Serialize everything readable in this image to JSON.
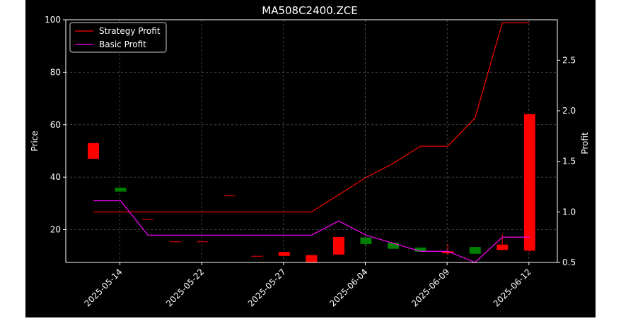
{
  "chart_data": {
    "type": "candlestick",
    "title": "MA508C2400.ZCE",
    "ylabel_left": "Price",
    "ylabel_right": "Profit",
    "ylim_left": [
      7.5,
      100
    ],
    "ylim_right": [
      0.5,
      2.9
    ],
    "yticks_left": [
      "20",
      "40",
      "60",
      "80",
      "100"
    ],
    "yticks_right": [
      "0.5",
      "1.0",
      "1.5",
      "2.0",
      "2.5"
    ],
    "xticks": [
      "2025-05-14",
      "2025-05-22",
      "2025-05-27",
      "2025-06-04",
      "2025-06-09",
      "2025-06-12"
    ],
    "grid": true,
    "legend_position": "upper-left",
    "legend": [
      "Strategy Profit",
      "Basic Profit"
    ],
    "colors": {
      "up": "#ff0000",
      "down": "#008000",
      "strategy": "#ff0000",
      "basic": "#ff00ff",
      "background": "#000000",
      "grid": "#555555"
    },
    "candles": [
      {
        "open": 47,
        "close": 53,
        "high": 53,
        "low": 47,
        "color": "up"
      },
      {
        "open": 36,
        "close": 34.5,
        "high": 36,
        "low": 34.5,
        "color": "down"
      },
      {
        "open": 24,
        "close": 24,
        "high": 24,
        "low": 24,
        "color": "up"
      },
      {
        "open": 15.5,
        "close": 15.5,
        "high": 15.5,
        "low": 15.5,
        "color": "up"
      },
      {
        "open": 15.5,
        "close": 15.5,
        "high": 15.5,
        "low": 15.5,
        "color": "up"
      },
      {
        "open": 33,
        "close": 33,
        "high": 33,
        "low": 33,
        "color": "up"
      },
      {
        "open": 10,
        "close": 10,
        "high": 10,
        "low": 10,
        "color": "up"
      },
      {
        "open": 10,
        "close": 11.5,
        "high": 11.5,
        "low": 10,
        "color": "up"
      },
      {
        "open": 7.5,
        "close": 10.3,
        "high": 10.3,
        "low": 7.5,
        "color": "up"
      },
      {
        "open": 10.5,
        "close": 17.2,
        "high": 17.2,
        "low": 10.5,
        "color": "up"
      },
      {
        "open": 17,
        "close": 14.5,
        "high": 17,
        "low": 13.2,
        "color": "down"
      },
      {
        "open": 15,
        "close": 12.7,
        "high": 15,
        "low": 12.7,
        "color": "down"
      },
      {
        "open": 13.2,
        "close": 11.6,
        "high": 13.2,
        "low": 11.6,
        "color": "down"
      },
      {
        "open": 11,
        "close": 11.7,
        "high": 14.5,
        "low": 10.3,
        "color": "up"
      },
      {
        "open": 13.4,
        "close": 10.8,
        "high": 13.4,
        "low": 10.8,
        "color": "down"
      },
      {
        "open": 12.3,
        "close": 14.3,
        "high": 18.2,
        "low": 12,
        "color": "up"
      },
      {
        "open": 12,
        "close": 64,
        "high": 64,
        "low": 11.5,
        "color": "up"
      }
    ],
    "series": [
      {
        "name": "Strategy Profit",
        "values": [
          1.0,
          1.0,
          1.0,
          1.0,
          1.0,
          1.0,
          1.0,
          1.0,
          1.0,
          1.17,
          1.34,
          1.48,
          1.65,
          1.65,
          1.93,
          2.87,
          2.87
        ]
      },
      {
        "name": "Basic Profit",
        "values": [
          1.11,
          1.11,
          0.77,
          0.77,
          0.77,
          0.77,
          0.77,
          0.77,
          0.77,
          0.91,
          0.77,
          0.69,
          0.61,
          0.61,
          0.5,
          0.75,
          0.75
        ]
      }
    ]
  }
}
